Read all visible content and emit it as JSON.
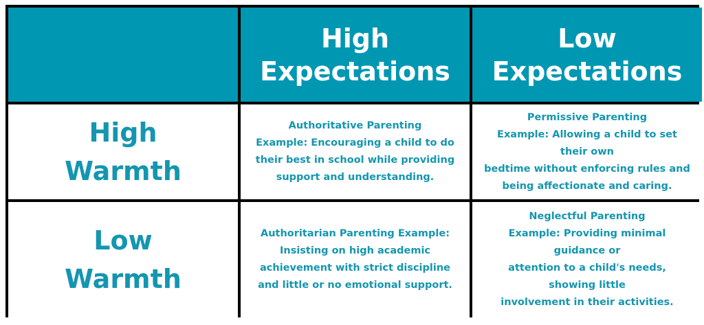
{
  "colors": {
    "header_bg": "#0097b2",
    "text": "#1496b0",
    "border": "#000000"
  },
  "header": {
    "corner": "",
    "columns": [
      [
        "High",
        "Expectations"
      ],
      [
        "Low",
        "Expectations"
      ]
    ]
  },
  "rows": [
    {
      "label": [
        "High",
        "Warmth"
      ],
      "cells": [
        [
          "Authoritative Parenting",
          "Example: Encouraging a child to do",
          "their best in school while providing",
          "support and understanding."
        ],
        [
          "Permissive Parenting",
          "Example: Allowing a child to set",
          "their own",
          "bedtime without enforcing rules and",
          "being affectionate and caring."
        ]
      ]
    },
    {
      "label": [
        "Low",
        "Warmth"
      ],
      "cells": [
        [
          "Authoritarian Parenting Example:",
          "Insisting on high academic",
          "achievement with strict discipline",
          "and little or no emotional support."
        ],
        [
          "Neglectful Parenting",
          "Example: Providing minimal",
          "guidance or",
          "attention to a child's needs,",
          "showing little",
          "involvement in their activities."
        ]
      ]
    }
  ]
}
